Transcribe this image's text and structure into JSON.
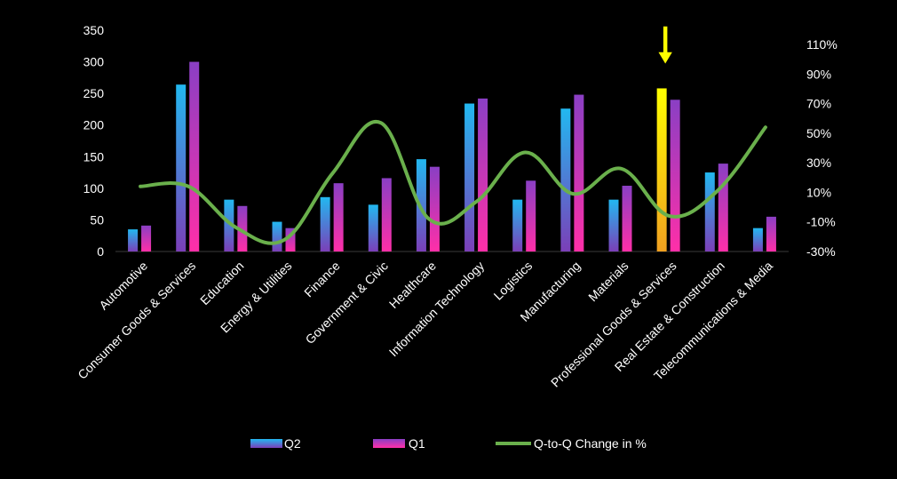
{
  "chart_data": {
    "type": "bar",
    "categories": [
      "Automotive",
      "Consumer Goods & Services",
      "Education",
      "Energy & Utilities",
      "Finance",
      "Government & Civic",
      "Healthcare",
      "Information Technology",
      "Logistics",
      "Manufacturing",
      "Materials",
      "Professional Goods & Services",
      "Real Estate & Construction",
      "Telecommunications & Media"
    ],
    "series": [
      {
        "name": "Q2",
        "type": "bar",
        "axis": "left",
        "values": [
          35,
          264,
          82,
          47,
          86,
          74,
          146,
          234,
          82,
          226,
          82,
          258,
          125,
          37
        ]
      },
      {
        "name": "Q1",
        "type": "bar",
        "axis": "left",
        "values": [
          41,
          300,
          72,
          37,
          108,
          116,
          134,
          242,
          112,
          248,
          104,
          240,
          139,
          55
        ]
      },
      {
        "name": "Q-to-Q Change in %",
        "type": "line",
        "axis": "right",
        "smooth": true,
        "values": [
          14,
          14,
          -14,
          -22,
          23,
          57,
          -8,
          4,
          37,
          9,
          26,
          -6,
          11,
          54
        ]
      }
    ],
    "y_left": {
      "min": 0,
      "max": 350,
      "step": 50,
      "ticks": [
        "0",
        "50",
        "100",
        "150",
        "200",
        "250",
        "300",
        "350"
      ]
    },
    "y_right": {
      "min": -30,
      "max": 110,
      "ticks": [
        "-30%",
        "-10%",
        "10%",
        "30%",
        "50%",
        "70%",
        "90%",
        "110%"
      ],
      "unit": "%"
    },
    "highlight": {
      "category": "Professional Goods & Services",
      "series": "Q2",
      "marker": "down-arrow"
    },
    "legend": {
      "placement": "bottom",
      "entries": [
        "Q2",
        "Q1",
        "Q-to-Q Change in %"
      ]
    },
    "grid": false,
    "colors": {
      "background": "#000000",
      "q2_top": "#22b8f0",
      "q2_bottom": "#7b3fb8",
      "q1_top": "#8a3fc4",
      "q1_bottom": "#ff2fa8",
      "line": "#6ab04c",
      "highlight_top": "#ffff00",
      "highlight_bottom": "#f0a020",
      "arrow": "#ffff00",
      "text": "#ffffff"
    }
  }
}
